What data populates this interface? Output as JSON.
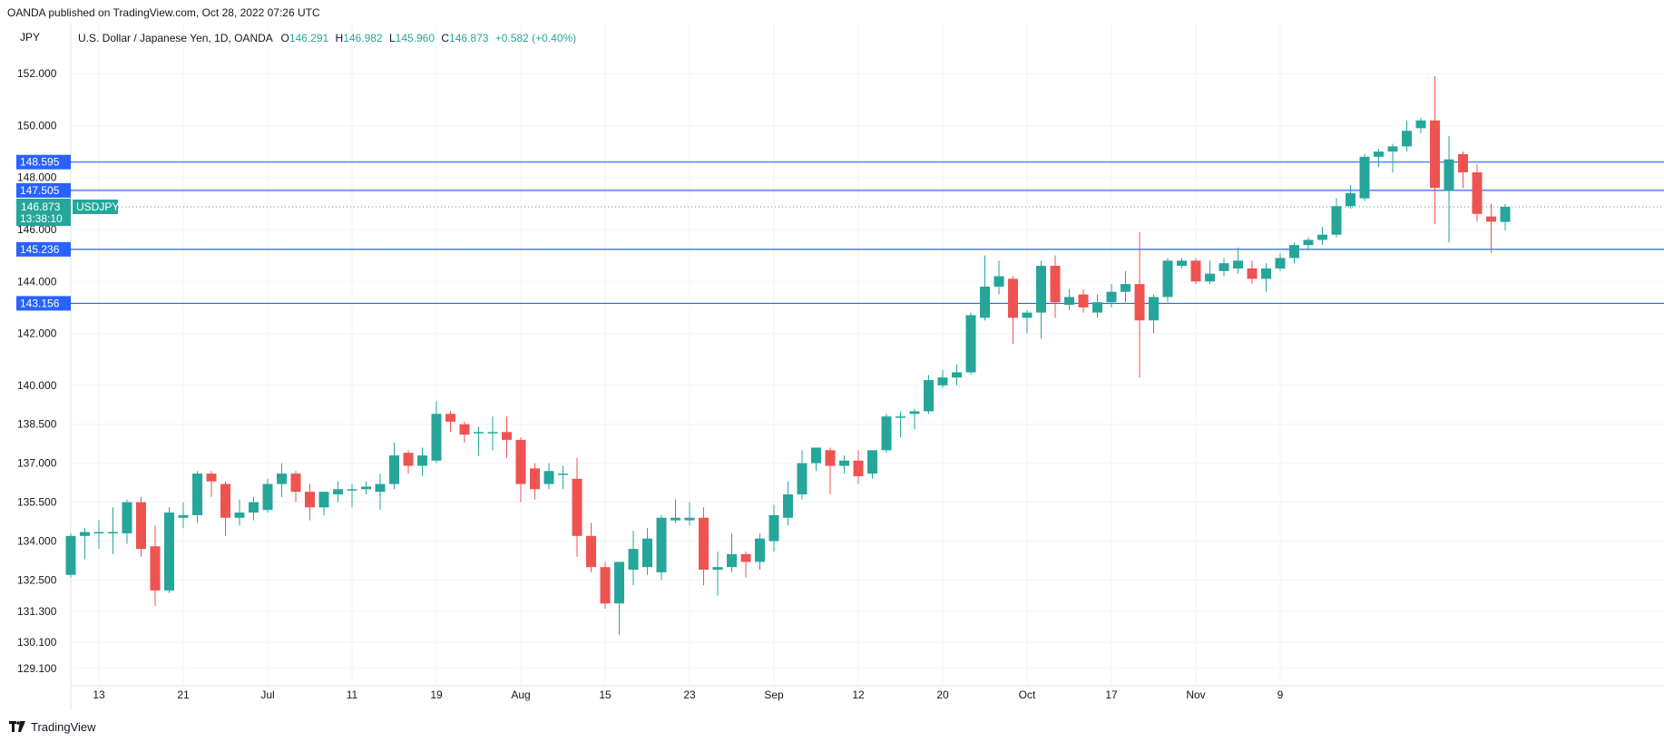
{
  "header": {
    "publisher_line": "OANDA published on TradingView.com, Oct 28, 2022 07:26 UTC"
  },
  "legend": {
    "currency": "JPY",
    "symbol": "U.S. Dollar / Japanese Yen, 1D, OANDA",
    "o_label": "O",
    "o_value": "146.291",
    "h_label": "H",
    "h_value": "146.982",
    "l_label": "L",
    "l_value": "145.960",
    "c_label": "C",
    "c_value": "146.873",
    "change": "+0.582 (+0.40%)"
  },
  "footer": {
    "brand": "TradingView"
  },
  "colors": {
    "up": "#26a69a",
    "down": "#ef5350",
    "level_line": "#2962ff",
    "grid": "#f0f3fa",
    "axis_text": "#131722"
  },
  "chart_data": {
    "type": "candlestick",
    "title": "U.S. Dollar / Japanese Yen, 1D, OANDA",
    "y_axis": {
      "labels": [
        "152.000",
        "150.000",
        "148.000",
        "146.000",
        "144.000",
        "142.000",
        "140.000",
        "138.500",
        "137.000",
        "135.500",
        "134.000",
        "132.500",
        "131.300",
        "130.100",
        "129.100"
      ],
      "range": [
        128.5,
        153.3
      ]
    },
    "x_axis": {
      "labels": [
        "13",
        "21",
        "Jul",
        "11",
        "19",
        "Aug",
        "15",
        "23",
        "Sep",
        "12",
        "20",
        "Oct",
        "17",
        "Nov",
        "9"
      ],
      "label_bar_index": [
        2,
        8,
        14,
        20,
        26,
        32,
        38,
        44,
        50,
        56,
        62,
        68,
        74,
        80,
        86
      ]
    },
    "current_price": {
      "label": "USDJPY",
      "value": "146.873",
      "countdown": "13:38:10"
    },
    "levels": [
      {
        "label": "148.595",
        "value": 148.595
      },
      {
        "label": "147.505",
        "value": 147.505
      },
      {
        "label": "145.236",
        "value": 145.236
      },
      {
        "label": "143.156",
        "value": 143.156
      }
    ],
    "candles": [
      {
        "o": 132.7,
        "h": 134.3,
        "l": 132.6,
        "c": 134.2
      },
      {
        "o": 134.2,
        "h": 134.5,
        "l": 133.3,
        "c": 134.35
      },
      {
        "o": 134.3,
        "h": 134.8,
        "l": 133.7,
        "c": 134.35
      },
      {
        "o": 134.3,
        "h": 135.3,
        "l": 133.5,
        "c": 134.35
      },
      {
        "o": 134.3,
        "h": 135.6,
        "l": 133.9,
        "c": 135.5
      },
      {
        "o": 135.5,
        "h": 135.7,
        "l": 133.4,
        "c": 133.7
      },
      {
        "o": 133.8,
        "h": 134.6,
        "l": 131.5,
        "c": 132.1
      },
      {
        "o": 132.1,
        "h": 135.3,
        "l": 132.0,
        "c": 135.1
      },
      {
        "o": 134.9,
        "h": 135.5,
        "l": 134.5,
        "c": 135.0
      },
      {
        "o": 135.0,
        "h": 136.7,
        "l": 134.7,
        "c": 136.6
      },
      {
        "o": 136.6,
        "h": 136.7,
        "l": 135.7,
        "c": 136.3
      },
      {
        "o": 136.2,
        "h": 136.3,
        "l": 134.2,
        "c": 134.9
      },
      {
        "o": 134.9,
        "h": 135.6,
        "l": 134.6,
        "c": 135.1
      },
      {
        "o": 135.1,
        "h": 135.7,
        "l": 134.8,
        "c": 135.5
      },
      {
        "o": 135.2,
        "h": 136.4,
        "l": 135.1,
        "c": 136.2
      },
      {
        "o": 136.2,
        "h": 137.0,
        "l": 135.7,
        "c": 136.6
      },
      {
        "o": 136.6,
        "h": 136.7,
        "l": 135.5,
        "c": 135.9
      },
      {
        "o": 135.9,
        "h": 136.2,
        "l": 134.8,
        "c": 135.3
      },
      {
        "o": 135.3,
        "h": 135.9,
        "l": 135.0,
        "c": 135.9
      },
      {
        "o": 135.8,
        "h": 136.3,
        "l": 135.5,
        "c": 136.0
      },
      {
        "o": 136.0,
        "h": 136.2,
        "l": 135.3,
        "c": 136.0
      },
      {
        "o": 136.0,
        "h": 136.3,
        "l": 135.8,
        "c": 136.1
      },
      {
        "o": 135.9,
        "h": 136.6,
        "l": 135.2,
        "c": 136.2
      },
      {
        "o": 136.2,
        "h": 137.8,
        "l": 136.0,
        "c": 137.3
      },
      {
        "o": 137.4,
        "h": 137.5,
        "l": 136.6,
        "c": 136.9
      },
      {
        "o": 136.9,
        "h": 137.6,
        "l": 136.5,
        "c": 137.3
      },
      {
        "o": 137.1,
        "h": 139.4,
        "l": 137.0,
        "c": 138.9
      },
      {
        "o": 138.9,
        "h": 139.0,
        "l": 138.2,
        "c": 138.6
      },
      {
        "o": 138.5,
        "h": 138.6,
        "l": 137.8,
        "c": 138.1
      },
      {
        "o": 138.2,
        "h": 138.4,
        "l": 137.3,
        "c": 138.2
      },
      {
        "o": 138.2,
        "h": 138.8,
        "l": 137.5,
        "c": 138.2
      },
      {
        "o": 138.2,
        "h": 138.8,
        "l": 137.2,
        "c": 137.9
      },
      {
        "o": 137.9,
        "h": 138.0,
        "l": 135.5,
        "c": 136.2
      },
      {
        "o": 136.8,
        "h": 137.0,
        "l": 135.6,
        "c": 136.0
      },
      {
        "o": 136.2,
        "h": 137.0,
        "l": 136.0,
        "c": 136.7
      },
      {
        "o": 136.6,
        "h": 136.9,
        "l": 136.0,
        "c": 136.6
      },
      {
        "o": 136.4,
        "h": 137.2,
        "l": 133.4,
        "c": 134.2
      },
      {
        "o": 134.2,
        "h": 134.7,
        "l": 132.8,
        "c": 133.0
      },
      {
        "o": 133.0,
        "h": 133.2,
        "l": 131.4,
        "c": 131.6
      },
      {
        "o": 131.6,
        "h": 133.2,
        "l": 130.4,
        "c": 133.2
      },
      {
        "o": 132.9,
        "h": 134.4,
        "l": 132.3,
        "c": 133.7
      },
      {
        "o": 133.0,
        "h": 134.5,
        "l": 132.7,
        "c": 134.1
      },
      {
        "o": 132.8,
        "h": 135.0,
        "l": 132.5,
        "c": 134.9
      },
      {
        "o": 134.8,
        "h": 135.6,
        "l": 134.7,
        "c": 134.9
      },
      {
        "o": 134.8,
        "h": 135.5,
        "l": 134.6,
        "c": 134.9
      },
      {
        "o": 134.9,
        "h": 135.3,
        "l": 132.3,
        "c": 132.9
      },
      {
        "o": 132.9,
        "h": 133.6,
        "l": 131.9,
        "c": 133.0
      },
      {
        "o": 133.0,
        "h": 134.3,
        "l": 132.8,
        "c": 133.5
      },
      {
        "o": 133.5,
        "h": 133.6,
        "l": 132.6,
        "c": 133.2
      },
      {
        "o": 133.2,
        "h": 134.3,
        "l": 132.9,
        "c": 134.1
      },
      {
        "o": 134.0,
        "h": 135.4,
        "l": 133.6,
        "c": 135.0
      },
      {
        "o": 134.9,
        "h": 136.3,
        "l": 134.6,
        "c": 135.8
      },
      {
        "o": 135.8,
        "h": 137.5,
        "l": 135.6,
        "c": 137.0
      },
      {
        "o": 137.0,
        "h": 137.6,
        "l": 136.7,
        "c": 137.6
      },
      {
        "o": 137.5,
        "h": 137.6,
        "l": 135.8,
        "c": 136.9
      },
      {
        "o": 136.9,
        "h": 137.3,
        "l": 136.6,
        "c": 137.1
      },
      {
        "o": 137.1,
        "h": 137.5,
        "l": 136.2,
        "c": 136.5
      },
      {
        "o": 136.6,
        "h": 137.5,
        "l": 136.4,
        "c": 137.5
      },
      {
        "o": 137.5,
        "h": 138.9,
        "l": 137.4,
        "c": 138.8
      },
      {
        "o": 138.8,
        "h": 139.0,
        "l": 138.0,
        "c": 138.8
      },
      {
        "o": 138.9,
        "h": 139.1,
        "l": 138.3,
        "c": 139.0
      },
      {
        "o": 139.0,
        "h": 140.4,
        "l": 138.9,
        "c": 140.2
      },
      {
        "o": 140.0,
        "h": 140.6,
        "l": 139.9,
        "c": 140.3
      },
      {
        "o": 140.3,
        "h": 140.8,
        "l": 140.0,
        "c": 140.5
      },
      {
        "o": 140.5,
        "h": 142.8,
        "l": 140.4,
        "c": 142.7
      },
      {
        "o": 142.6,
        "h": 145.0,
        "l": 142.5,
        "c": 143.8
      },
      {
        "o": 143.8,
        "h": 144.8,
        "l": 143.5,
        "c": 144.2
      },
      {
        "o": 144.1,
        "h": 144.2,
        "l": 141.6,
        "c": 142.6
      },
      {
        "o": 142.6,
        "h": 142.9,
        "l": 142.0,
        "c": 142.8
      },
      {
        "o": 142.8,
        "h": 144.8,
        "l": 141.8,
        "c": 144.6
      },
      {
        "o": 144.6,
        "h": 145.0,
        "l": 142.6,
        "c": 143.2
      },
      {
        "o": 143.1,
        "h": 143.7,
        "l": 142.9,
        "c": 143.4
      },
      {
        "o": 143.5,
        "h": 143.7,
        "l": 142.8,
        "c": 143.0
      },
      {
        "o": 142.8,
        "h": 143.5,
        "l": 142.6,
        "c": 143.2
      },
      {
        "o": 143.2,
        "h": 143.9,
        "l": 143.0,
        "c": 143.6
      },
      {
        "o": 143.6,
        "h": 144.4,
        "l": 143.2,
        "c": 143.9
      },
      {
        "o": 143.9,
        "h": 145.9,
        "l": 140.3,
        "c": 142.5
      },
      {
        "o": 142.5,
        "h": 143.5,
        "l": 142.0,
        "c": 143.4
      },
      {
        "o": 143.4,
        "h": 144.9,
        "l": 143.2,
        "c": 144.8
      },
      {
        "o": 144.6,
        "h": 144.9,
        "l": 144.5,
        "c": 144.8
      },
      {
        "o": 144.8,
        "h": 144.9,
        "l": 143.9,
        "c": 144.0
      },
      {
        "o": 144.0,
        "h": 144.8,
        "l": 143.9,
        "c": 144.3
      },
      {
        "o": 144.4,
        "h": 144.9,
        "l": 144.2,
        "c": 144.7
      },
      {
        "o": 144.5,
        "h": 145.3,
        "l": 144.3,
        "c": 144.8
      },
      {
        "o": 144.5,
        "h": 144.8,
        "l": 143.9,
        "c": 144.1
      },
      {
        "o": 144.1,
        "h": 144.7,
        "l": 143.6,
        "c": 144.5
      },
      {
        "o": 144.5,
        "h": 145.1,
        "l": 144.4,
        "c": 144.9
      },
      {
        "o": 144.9,
        "h": 145.5,
        "l": 144.7,
        "c": 145.4
      },
      {
        "o": 145.4,
        "h": 145.7,
        "l": 145.2,
        "c": 145.6
      },
      {
        "o": 145.6,
        "h": 146.1,
        "l": 145.4,
        "c": 145.8
      },
      {
        "o": 145.8,
        "h": 147.2,
        "l": 145.7,
        "c": 146.9
      },
      {
        "o": 146.9,
        "h": 147.7,
        "l": 146.8,
        "c": 147.4
      },
      {
        "o": 147.2,
        "h": 148.9,
        "l": 147.1,
        "c": 148.8
      },
      {
        "o": 148.8,
        "h": 149.1,
        "l": 148.4,
        "c": 149.0
      },
      {
        "o": 149.0,
        "h": 149.3,
        "l": 148.2,
        "c": 149.2
      },
      {
        "o": 149.2,
        "h": 150.2,
        "l": 149.0,
        "c": 149.8
      },
      {
        "o": 149.9,
        "h": 150.3,
        "l": 149.7,
        "c": 150.2
      },
      {
        "o": 150.2,
        "h": 151.9,
        "l": 146.2,
        "c": 147.6
      },
      {
        "o": 147.5,
        "h": 149.6,
        "l": 145.5,
        "c": 148.7
      },
      {
        "o": 148.9,
        "h": 149.0,
        "l": 147.6,
        "c": 148.2
      },
      {
        "o": 148.2,
        "h": 148.5,
        "l": 146.3,
        "c": 146.6
      },
      {
        "o": 146.5,
        "h": 147.0,
        "l": 145.1,
        "c": 146.3
      },
      {
        "o": 146.291,
        "h": 146.982,
        "l": 145.96,
        "c": 146.873
      }
    ]
  }
}
